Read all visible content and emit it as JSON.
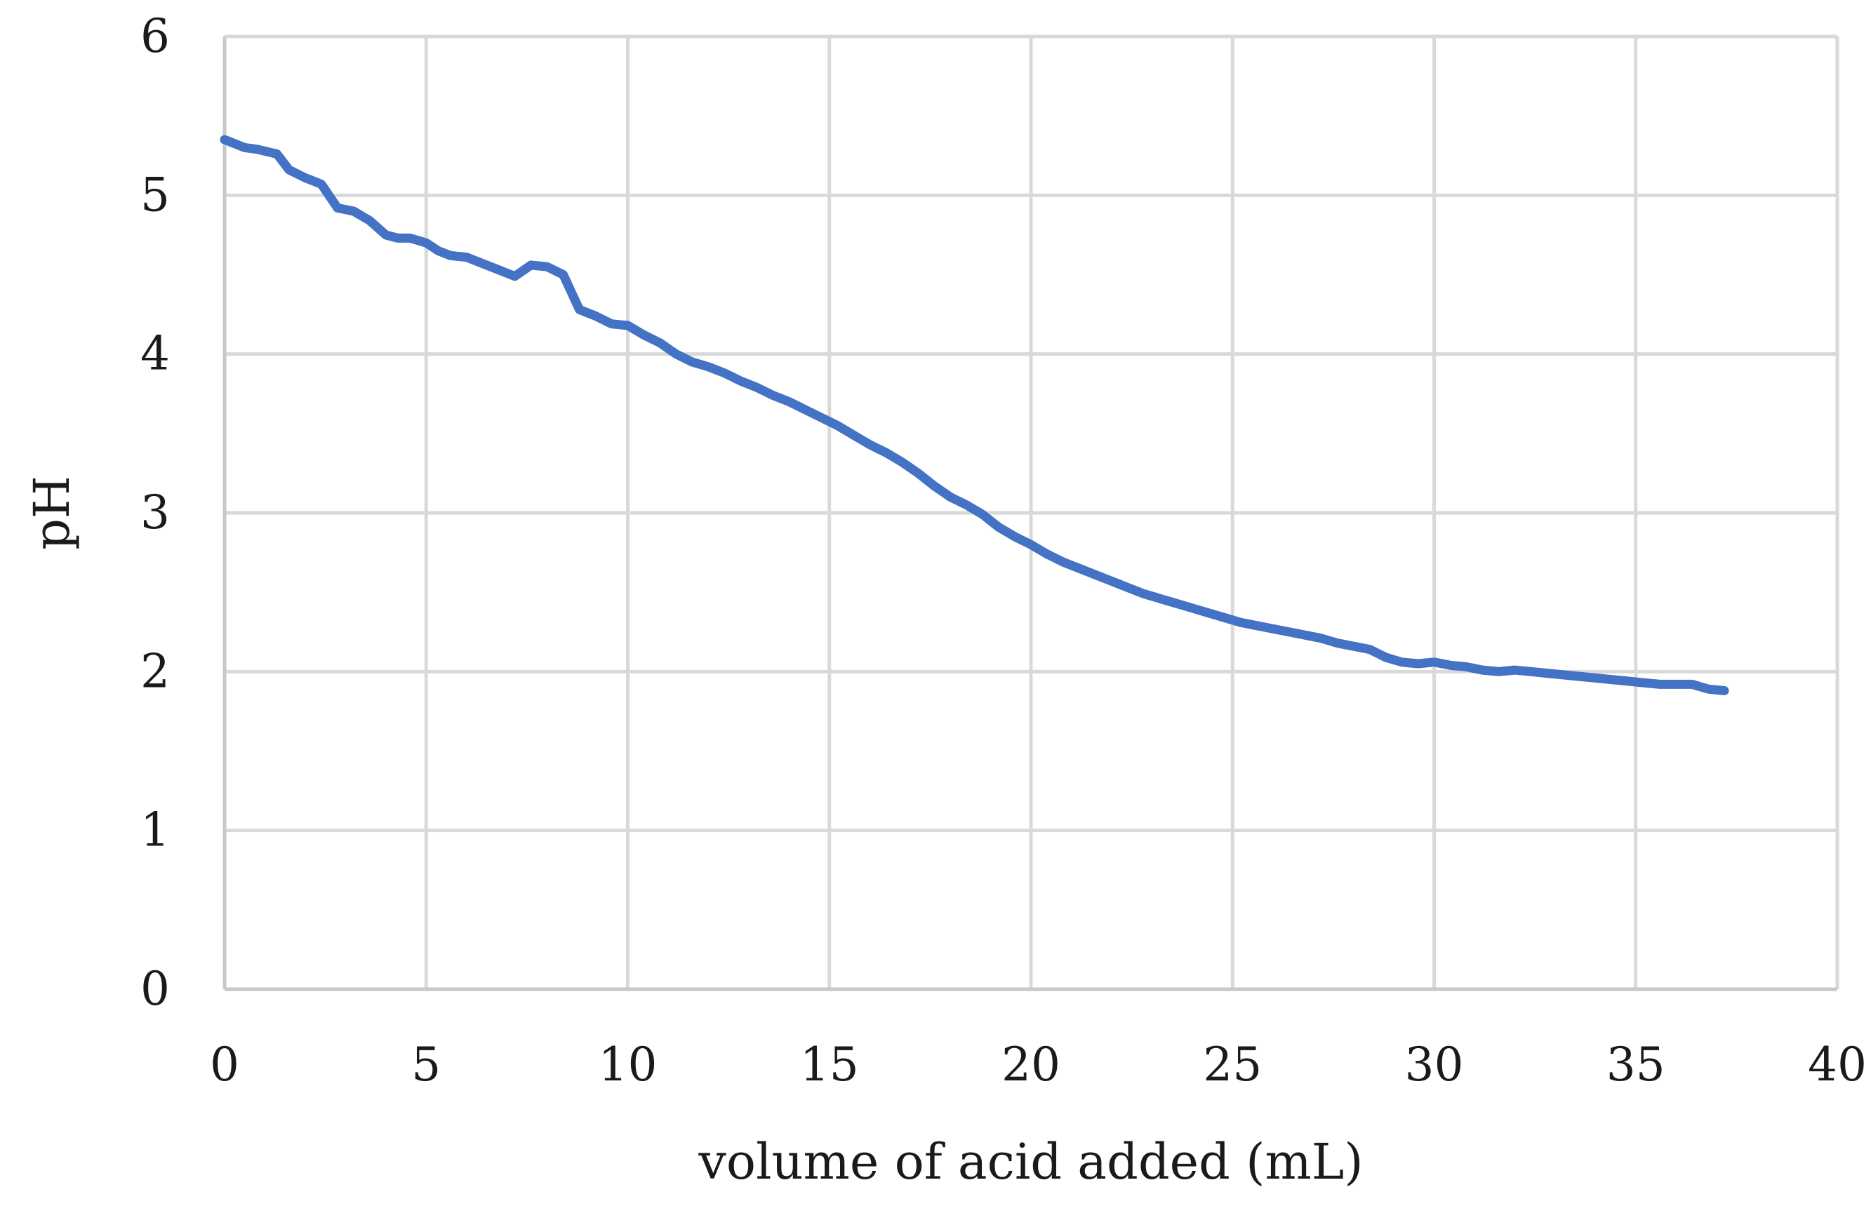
{
  "chart_data": {
    "type": "line",
    "title": "",
    "xlabel": "volume of acid added (mL)",
    "ylabel": "pH",
    "xlim": [
      0,
      40
    ],
    "ylim": [
      0,
      6
    ],
    "x_ticks": [
      0,
      5,
      10,
      15,
      20,
      25,
      30,
      35,
      40
    ],
    "y_ticks": [
      0,
      1,
      2,
      3,
      4,
      5,
      6
    ],
    "grid": true,
    "legend": "none",
    "colors": {
      "series": "#4472c4",
      "grid": "#d9d9d9",
      "axis": "#c8c8c8"
    },
    "series": [
      {
        "x": [
          0,
          0.5,
          0.8,
          1.3,
          1.6,
          2.0,
          2.4,
          2.8,
          3.2,
          3.6,
          4.0,
          4.3,
          4.6,
          5.0,
          5.3,
          5.6,
          6.0,
          6.4,
          6.8,
          7.2,
          7.6,
          8.0,
          8.4,
          8.8,
          9.2,
          9.6,
          10.0,
          10.4,
          10.8,
          11.2,
          11.6,
          12.0,
          12.4,
          12.8,
          13.2,
          13.6,
          14.0,
          14.4,
          14.8,
          15.2,
          15.6,
          16.0,
          16.4,
          16.8,
          17.2,
          17.6,
          18.0,
          18.4,
          18.8,
          19.2,
          19.6,
          20.0,
          20.4,
          20.8,
          21.2,
          21.6,
          22.0,
          22.4,
          22.8,
          23.2,
          23.6,
          24.0,
          24.4,
          24.8,
          25.2,
          25.6,
          26.0,
          26.4,
          26.8,
          27.2,
          27.6,
          28.0,
          28.4,
          28.8,
          29.2,
          29.6,
          30.0,
          30.4,
          30.8,
          31.2,
          31.6,
          32.0,
          32.4,
          32.8,
          33.2,
          33.6,
          34.0,
          34.4,
          34.8,
          35.2,
          35.6,
          36.0,
          36.4,
          36.8,
          37.2
        ],
        "values": [
          5.35,
          5.3,
          5.29,
          5.26,
          5.16,
          5.11,
          5.07,
          4.92,
          4.9,
          4.84,
          4.75,
          4.73,
          4.73,
          4.7,
          4.65,
          4.62,
          4.61,
          4.57,
          4.53,
          4.49,
          4.56,
          4.55,
          4.5,
          4.28,
          4.24,
          4.19,
          4.18,
          4.12,
          4.07,
          4.0,
          3.95,
          3.92,
          3.88,
          3.83,
          3.79,
          3.74,
          3.7,
          3.65,
          3.6,
          3.55,
          3.49,
          3.43,
          3.38,
          3.32,
          3.25,
          3.17,
          3.1,
          3.05,
          2.99,
          2.91,
          2.85,
          2.8,
          2.74,
          2.69,
          2.65,
          2.61,
          2.57,
          2.53,
          2.49,
          2.46,
          2.43,
          2.4,
          2.37,
          2.34,
          2.31,
          2.29,
          2.27,
          2.25,
          2.23,
          2.21,
          2.18,
          2.16,
          2.14,
          2.09,
          2.06,
          2.05,
          2.06,
          2.04,
          2.03,
          2.01,
          2.0,
          2.01,
          2.0,
          1.99,
          1.98,
          1.97,
          1.96,
          1.95,
          1.94,
          1.93,
          1.92,
          1.92,
          1.92,
          1.89,
          1.88
        ]
      }
    ]
  }
}
